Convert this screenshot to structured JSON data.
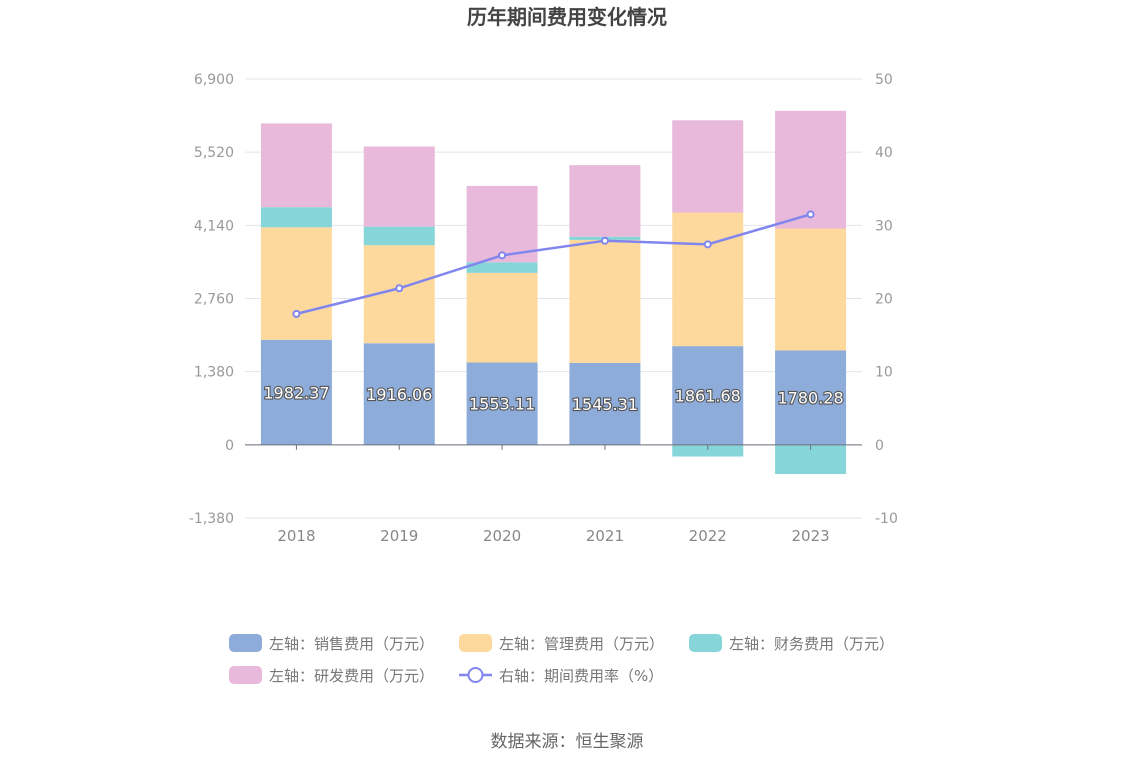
{
  "chart_data": {
    "type": "bar",
    "stacked": true,
    "title": "历年期间费用变化情况",
    "categories": [
      "2018",
      "2019",
      "2020",
      "2021",
      "2022",
      "2023"
    ],
    "left_axis": {
      "ticks": [
        "6,900",
        "5,520",
        "4,140",
        "2,760",
        "1,380",
        "0",
        "-1,380"
      ],
      "range": [
        -1380,
        6900
      ]
    },
    "right_axis": {
      "ticks": [
        "50",
        "40",
        "30",
        "20",
        "10",
        "0",
        "-10"
      ],
      "range": [
        -10,
        50
      ]
    },
    "series": [
      {
        "name": "左轴：销售费用（万元）",
        "type": "bar",
        "axis": "left",
        "color": "#8eacda",
        "values": [
          1982.37,
          1916.06,
          1553.11,
          1545.31,
          1861.68,
          1780.28
        ],
        "labels": [
          "1982.37",
          "1916.06",
          "1553.11",
          "1545.31",
          "1861.68",
          "1780.28"
        ]
      },
      {
        "name": "左轴：管理费用（万元）",
        "type": "bar",
        "axis": "left",
        "color": "#fdd99e",
        "values": [
          2120,
          1850,
          1690,
          2320,
          2520,
          2300
        ]
      },
      {
        "name": "左轴：财务费用（万元）",
        "type": "bar",
        "axis": "left",
        "color": "#86d5d9",
        "values": [
          380,
          350,
          200,
          60,
          -220,
          -550
        ]
      },
      {
        "name": "左轴：研发费用（万元）",
        "type": "bar",
        "axis": "left",
        "color": "#e8b9da",
        "values": [
          1580,
          1510,
          1440,
          1350,
          1740,
          2220
        ]
      },
      {
        "name": "右轴：期间费用率（%）",
        "type": "line",
        "axis": "right",
        "color": "#8185ee",
        "values": [
          17.9,
          21.4,
          25.9,
          27.9,
          27.4,
          31.5
        ]
      }
    ],
    "legend_position": "bottom",
    "grid": true
  },
  "source": "数据来源：恒生聚源"
}
